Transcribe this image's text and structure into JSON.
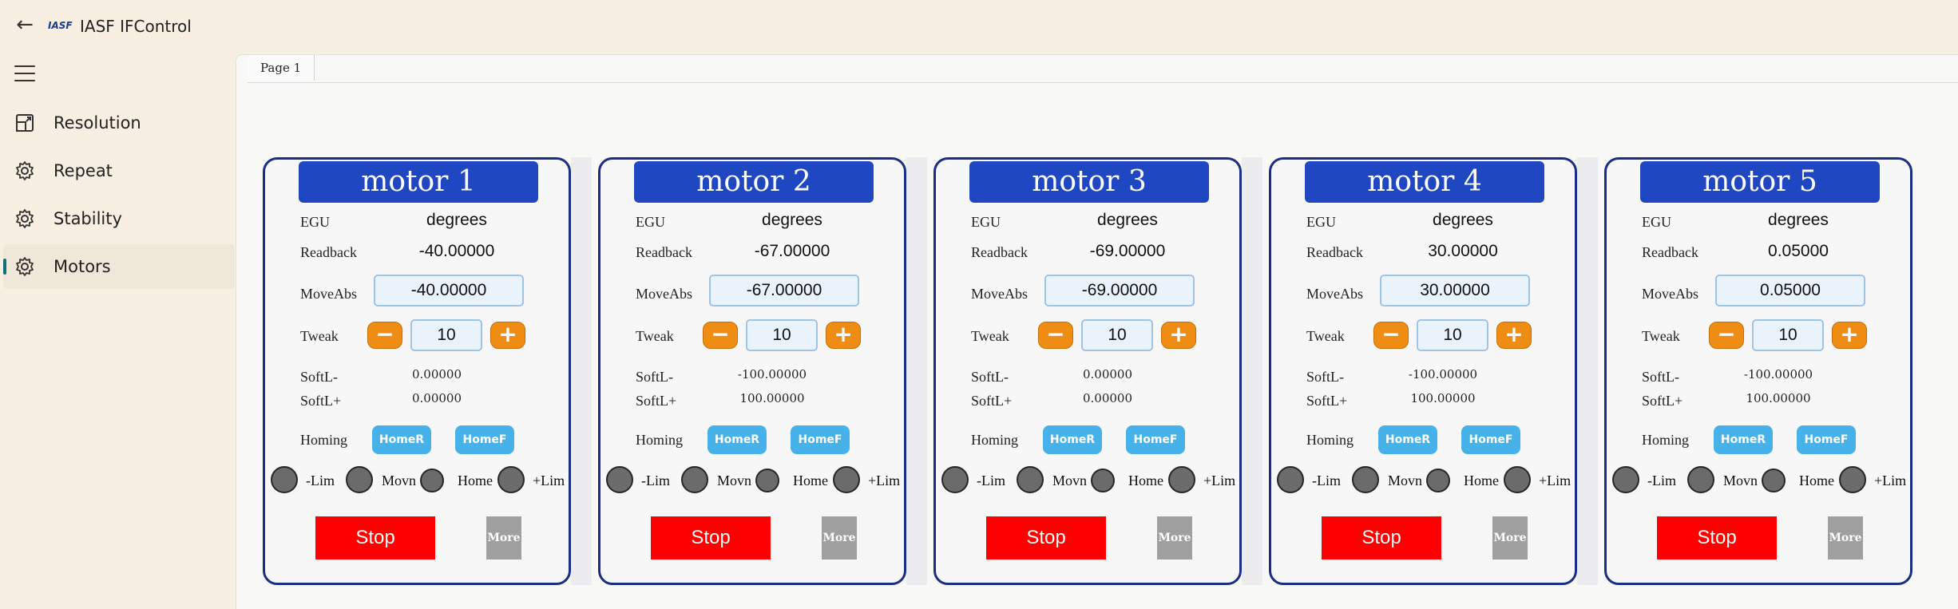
{
  "app": {
    "title": "IASF IFControl",
    "logo_text": "IASF"
  },
  "sidebar": {
    "items": [
      {
        "label": "Resolution",
        "icon": "resolution-icon",
        "active": false
      },
      {
        "label": "Repeat",
        "icon": "gear-icon",
        "active": false
      },
      {
        "label": "Stability",
        "icon": "gear-icon",
        "active": false
      },
      {
        "label": "Motors",
        "icon": "gear-icon",
        "active": true
      }
    ]
  },
  "tabs": [
    {
      "label": "Page 1"
    }
  ],
  "labels": {
    "egu": "EGU",
    "readback": "Readback",
    "moveabs": "MoveAbs",
    "tweak": "Tweak",
    "softl_minus": "SoftL-",
    "softl_plus": "SoftL+",
    "homing": "Homing",
    "home_r": "HomeR",
    "home_f": "HomeF",
    "lim_minus": "-Lim",
    "movn": "Movn",
    "home": "Home",
    "lim_plus": "+Lim",
    "stop": "Stop",
    "more": "More",
    "minus": "−",
    "plus": "+"
  },
  "motors": [
    {
      "title": "motor 1",
      "egu": "degrees",
      "readback": "-40.00000",
      "moveabs": "-40.00000",
      "tweak": "10",
      "softl_minus": "0.00000",
      "softl_plus": "0.00000"
    },
    {
      "title": "motor 2",
      "egu": "degrees",
      "readback": "-67.00000",
      "moveabs": "-67.00000",
      "tweak": "10",
      "softl_minus": "-100.00000",
      "softl_plus": "100.00000"
    },
    {
      "title": "motor 3",
      "egu": "degrees",
      "readback": "-69.00000",
      "moveabs": "-69.00000",
      "tweak": "10",
      "softl_minus": "0.00000",
      "softl_plus": "0.00000"
    },
    {
      "title": "motor 4",
      "egu": "degrees",
      "readback": "30.00000",
      "moveabs": "30.00000",
      "tweak": "10",
      "softl_minus": "-100.00000",
      "softl_plus": "100.00000"
    },
    {
      "title": "motor 5",
      "egu": "degrees",
      "readback": "0.05000",
      "moveabs": "0.05000",
      "tweak": "10",
      "softl_minus": "-100.00000",
      "softl_plus": "100.00000"
    }
  ],
  "colors": {
    "panel_border": "#1a2e86",
    "title_bg": "#1f47c1",
    "tweak_btn": "#ef8c14",
    "home_btn": "#47b1ea",
    "stop_btn": "#fe0000",
    "more_btn": "#9f9f9f",
    "led": "#6b6b6b"
  }
}
